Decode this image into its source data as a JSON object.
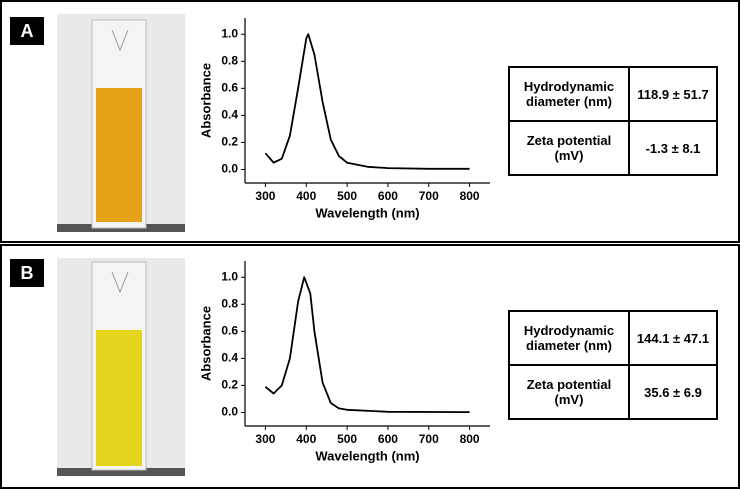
{
  "chart_data": [
    {
      "type": "line",
      "xlabel": "Wavelength (nm)",
      "ylabel": "Absorbance",
      "color": "#000000",
      "x": [
        300,
        320,
        340,
        360,
        380,
        400,
        405,
        420,
        440,
        460,
        480,
        500,
        550,
        600,
        700,
        800
      ],
      "values": [
        0.12,
        0.05,
        0.08,
        0.25,
        0.6,
        0.97,
        1.0,
        0.85,
        0.5,
        0.22,
        0.1,
        0.05,
        0.02,
        0.01,
        0.005,
        0.005
      ],
      "xlim": [
        250,
        850
      ],
      "ylim": [
        -0.1,
        1.12
      ],
      "xticks": [
        300,
        400,
        500,
        600,
        700,
        800
      ],
      "yticks": [
        {
          "value": 0,
          "label": "0.0"
        },
        0.2,
        0.4,
        0.6,
        0.8,
        {
          "value": 1,
          "label": "1.0"
        }
      ]
    },
    {
      "type": "line",
      "xlabel": "Wavelength (nm)",
      "ylabel": "Absorbance",
      "color": "#000000",
      "x": [
        300,
        320,
        340,
        360,
        380,
        395,
        410,
        420,
        440,
        460,
        480,
        500,
        600,
        800
      ],
      "values": [
        0.19,
        0.14,
        0.2,
        0.4,
        0.82,
        1.0,
        0.88,
        0.6,
        0.22,
        0.07,
        0.03,
        0.02,
        0.005,
        0.003
      ],
      "xlim": [
        250,
        850
      ],
      "ylim": [
        -0.1,
        1.12
      ],
      "xticks": [
        300,
        400,
        500,
        600,
        700,
        800
      ],
      "yticks": [
        {
          "value": 0,
          "label": "0.0"
        },
        0.2,
        0.4,
        0.6,
        0.8,
        {
          "value": 1,
          "label": "1.0"
        }
      ]
    }
  ],
  "panels": [
    {
      "label": "A",
      "liquid": "#e8a21a",
      "table": {
        "rows": [
          [
            "Hydrodynamic diameter (nm)",
            "118.9 ± 51.7"
          ],
          [
            "Zeta potential (mV)",
            "-1.3 ± 8.1"
          ]
        ]
      }
    },
    {
      "label": "B",
      "liquid": "#e4d41c",
      "table": {
        "rows": [
          [
            "Hydrodynamic diameter (nm)",
            "144.1 ± 47.1"
          ],
          [
            "Zeta potential (mV)",
            "35.6 ± 6.9"
          ]
        ]
      }
    }
  ]
}
